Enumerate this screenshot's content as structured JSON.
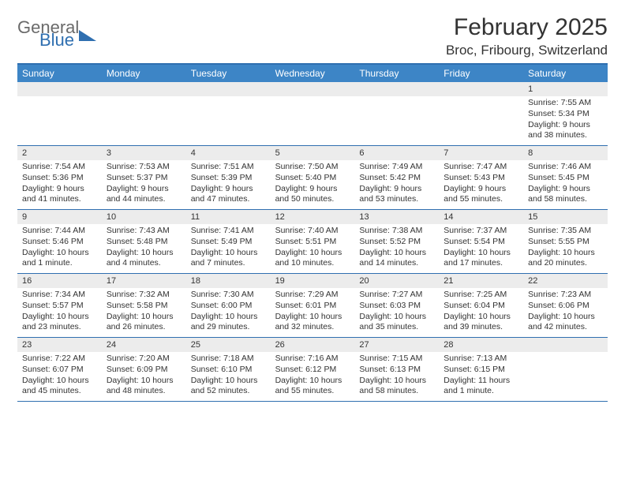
{
  "logo": {
    "general": "General",
    "blue": "Blue"
  },
  "title": "February 2025",
  "location": "Broc, Fribourg, Switzerland",
  "colors": {
    "header_bg": "#3d85c6",
    "border": "#2f6fb0",
    "daynum_bg": "#ececec",
    "text": "#333333"
  },
  "day_names": [
    "Sunday",
    "Monday",
    "Tuesday",
    "Wednesday",
    "Thursday",
    "Friday",
    "Saturday"
  ],
  "weeks": [
    [
      null,
      null,
      null,
      null,
      null,
      null,
      {
        "n": "1",
        "sr": "Sunrise: 7:55 AM",
        "ss": "Sunset: 5:34 PM",
        "dl": "Daylight: 9 hours and 38 minutes."
      }
    ],
    [
      {
        "n": "2",
        "sr": "Sunrise: 7:54 AM",
        "ss": "Sunset: 5:36 PM",
        "dl": "Daylight: 9 hours and 41 minutes."
      },
      {
        "n": "3",
        "sr": "Sunrise: 7:53 AM",
        "ss": "Sunset: 5:37 PM",
        "dl": "Daylight: 9 hours and 44 minutes."
      },
      {
        "n": "4",
        "sr": "Sunrise: 7:51 AM",
        "ss": "Sunset: 5:39 PM",
        "dl": "Daylight: 9 hours and 47 minutes."
      },
      {
        "n": "5",
        "sr": "Sunrise: 7:50 AM",
        "ss": "Sunset: 5:40 PM",
        "dl": "Daylight: 9 hours and 50 minutes."
      },
      {
        "n": "6",
        "sr": "Sunrise: 7:49 AM",
        "ss": "Sunset: 5:42 PM",
        "dl": "Daylight: 9 hours and 53 minutes."
      },
      {
        "n": "7",
        "sr": "Sunrise: 7:47 AM",
        "ss": "Sunset: 5:43 PM",
        "dl": "Daylight: 9 hours and 55 minutes."
      },
      {
        "n": "8",
        "sr": "Sunrise: 7:46 AM",
        "ss": "Sunset: 5:45 PM",
        "dl": "Daylight: 9 hours and 58 minutes."
      }
    ],
    [
      {
        "n": "9",
        "sr": "Sunrise: 7:44 AM",
        "ss": "Sunset: 5:46 PM",
        "dl": "Daylight: 10 hours and 1 minute."
      },
      {
        "n": "10",
        "sr": "Sunrise: 7:43 AM",
        "ss": "Sunset: 5:48 PM",
        "dl": "Daylight: 10 hours and 4 minutes."
      },
      {
        "n": "11",
        "sr": "Sunrise: 7:41 AM",
        "ss": "Sunset: 5:49 PM",
        "dl": "Daylight: 10 hours and 7 minutes."
      },
      {
        "n": "12",
        "sr": "Sunrise: 7:40 AM",
        "ss": "Sunset: 5:51 PM",
        "dl": "Daylight: 10 hours and 10 minutes."
      },
      {
        "n": "13",
        "sr": "Sunrise: 7:38 AM",
        "ss": "Sunset: 5:52 PM",
        "dl": "Daylight: 10 hours and 14 minutes."
      },
      {
        "n": "14",
        "sr": "Sunrise: 7:37 AM",
        "ss": "Sunset: 5:54 PM",
        "dl": "Daylight: 10 hours and 17 minutes."
      },
      {
        "n": "15",
        "sr": "Sunrise: 7:35 AM",
        "ss": "Sunset: 5:55 PM",
        "dl": "Daylight: 10 hours and 20 minutes."
      }
    ],
    [
      {
        "n": "16",
        "sr": "Sunrise: 7:34 AM",
        "ss": "Sunset: 5:57 PM",
        "dl": "Daylight: 10 hours and 23 minutes."
      },
      {
        "n": "17",
        "sr": "Sunrise: 7:32 AM",
        "ss": "Sunset: 5:58 PM",
        "dl": "Daylight: 10 hours and 26 minutes."
      },
      {
        "n": "18",
        "sr": "Sunrise: 7:30 AM",
        "ss": "Sunset: 6:00 PM",
        "dl": "Daylight: 10 hours and 29 minutes."
      },
      {
        "n": "19",
        "sr": "Sunrise: 7:29 AM",
        "ss": "Sunset: 6:01 PM",
        "dl": "Daylight: 10 hours and 32 minutes."
      },
      {
        "n": "20",
        "sr": "Sunrise: 7:27 AM",
        "ss": "Sunset: 6:03 PM",
        "dl": "Daylight: 10 hours and 35 minutes."
      },
      {
        "n": "21",
        "sr": "Sunrise: 7:25 AM",
        "ss": "Sunset: 6:04 PM",
        "dl": "Daylight: 10 hours and 39 minutes."
      },
      {
        "n": "22",
        "sr": "Sunrise: 7:23 AM",
        "ss": "Sunset: 6:06 PM",
        "dl": "Daylight: 10 hours and 42 minutes."
      }
    ],
    [
      {
        "n": "23",
        "sr": "Sunrise: 7:22 AM",
        "ss": "Sunset: 6:07 PM",
        "dl": "Daylight: 10 hours and 45 minutes."
      },
      {
        "n": "24",
        "sr": "Sunrise: 7:20 AM",
        "ss": "Sunset: 6:09 PM",
        "dl": "Daylight: 10 hours and 48 minutes."
      },
      {
        "n": "25",
        "sr": "Sunrise: 7:18 AM",
        "ss": "Sunset: 6:10 PM",
        "dl": "Daylight: 10 hours and 52 minutes."
      },
      {
        "n": "26",
        "sr": "Sunrise: 7:16 AM",
        "ss": "Sunset: 6:12 PM",
        "dl": "Daylight: 10 hours and 55 minutes."
      },
      {
        "n": "27",
        "sr": "Sunrise: 7:15 AM",
        "ss": "Sunset: 6:13 PM",
        "dl": "Daylight: 10 hours and 58 minutes."
      },
      {
        "n": "28",
        "sr": "Sunrise: 7:13 AM",
        "ss": "Sunset: 6:15 PM",
        "dl": "Daylight: 11 hours and 1 minute."
      },
      null
    ]
  ]
}
